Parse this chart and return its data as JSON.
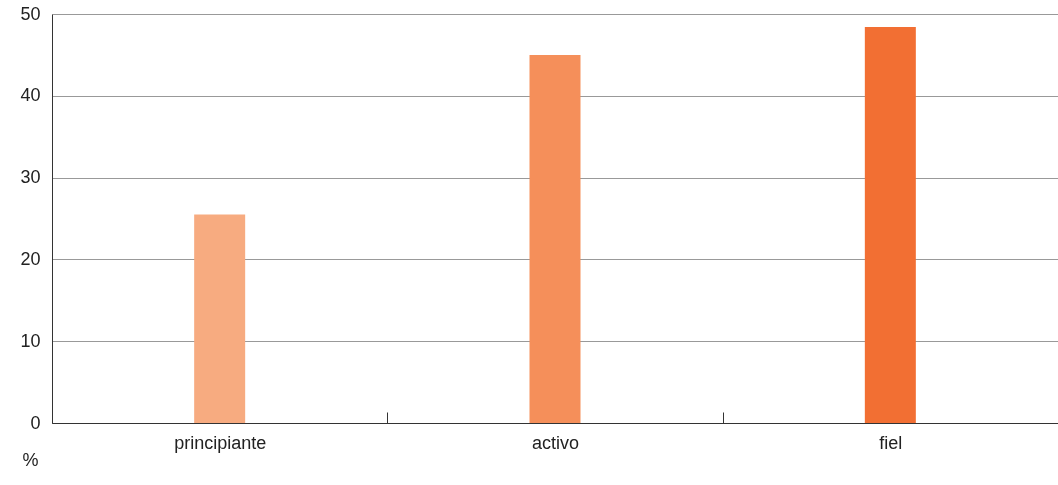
{
  "chart_data": {
    "type": "bar",
    "ylabel": "%",
    "categories": [
      "principiante",
      "activo",
      "fiel"
    ],
    "values": [
      25.5,
      45.0,
      48.4
    ],
    "colors": [
      "#f7ab80",
      "#f58f5a",
      "#f26f33"
    ],
    "ylim": [
      0,
      50
    ],
    "yticks": [
      0,
      10,
      20,
      30,
      40,
      50
    ],
    "grid": "y"
  }
}
